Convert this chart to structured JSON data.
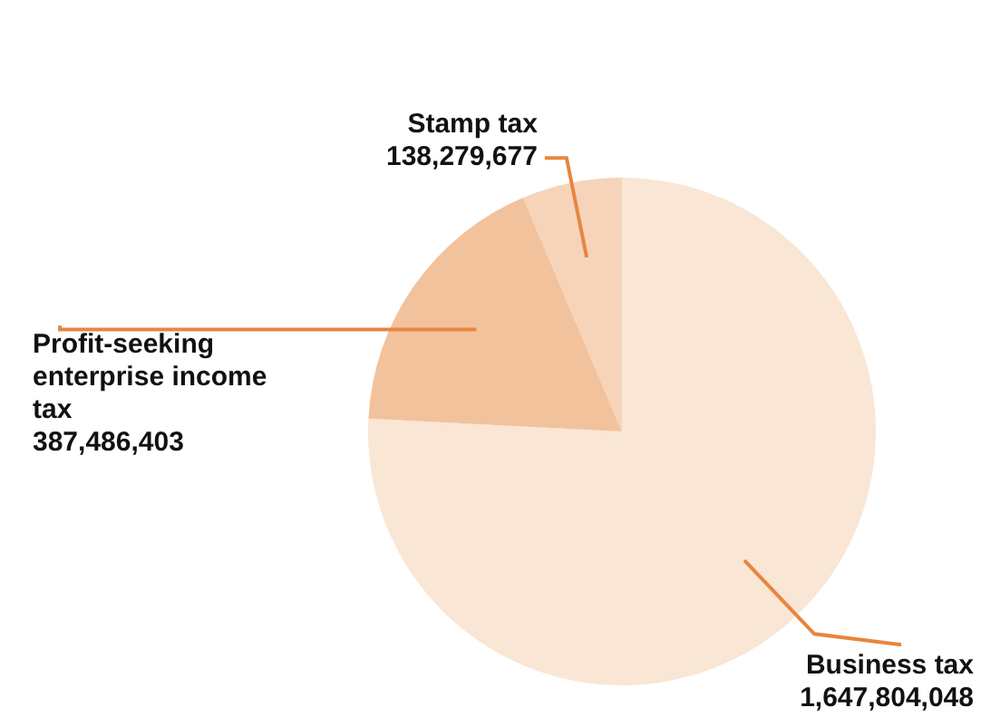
{
  "chart_data": {
    "type": "pie",
    "categories": [
      "Business tax",
      "Profit-seeking enterprise income tax",
      "Stamp tax"
    ],
    "values": [
      1647804048,
      387486403,
      138279677
    ],
    "colors": [
      "#f9e6d5",
      "#f2c29c",
      "#f5d4ba"
    ],
    "value_labels": [
      "1,647,804,048",
      "387,486,403",
      "138,279,677"
    ],
    "legend": false
  }
}
